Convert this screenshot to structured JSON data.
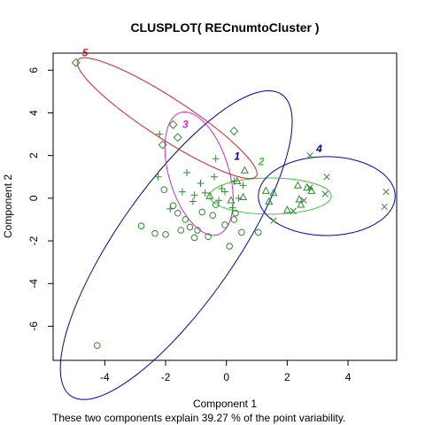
{
  "chart_data": {
    "type": "scatter",
    "title": "CLUSPLOT( RECnumtoCluster )",
    "xlabel": "Component 1",
    "ylabel": "Component 2",
    "caption": "These two components explain 39.27 % of the point variability.",
    "xlim": [
      -5.7,
      5.6
    ],
    "ylim": [
      -7.6,
      6.8
    ],
    "xticks": [
      -4,
      -2,
      0,
      2,
      4
    ],
    "yticks": [
      -6,
      -4,
      -2,
      0,
      2,
      4,
      6
    ],
    "xtick_labels": [
      "-4",
      "-2",
      "0",
      "2",
      "4"
    ],
    "ytick_labels": [
      "-6",
      "-4",
      "-2",
      "0",
      "2",
      "4",
      "6"
    ],
    "grid": false,
    "point_color": "#2e8b2e",
    "clusters": [
      {
        "label": "1",
        "color": "#0000cc",
        "ellipse": {
          "cx": -1.65,
          "cy": -2.2,
          "ra": 6.05,
          "rb": 2.75,
          "angle_deg": 55
        },
        "label_pos": [
          0.35,
          1.8
        ],
        "marker": "circle",
        "points": [
          [
            -4.25,
            -6.9
          ],
          [
            -2.8,
            -1.3
          ],
          [
            -2.35,
            -1.65
          ],
          [
            -2.0,
            -1.7
          ],
          [
            -2.05,
            0.4
          ],
          [
            -1.75,
            -0.35
          ],
          [
            -1.6,
            -0.7
          ],
          [
            -1.5,
            -1.5
          ],
          [
            -1.35,
            -1.0
          ],
          [
            -1.2,
            -1.35
          ],
          [
            -1.05,
            -1.85
          ],
          [
            -0.95,
            -1.5
          ],
          [
            -0.6,
            -1.8
          ],
          [
            -0.45,
            -0.8
          ],
          [
            -0.35,
            -0.3
          ],
          [
            -0.05,
            -1.25
          ],
          [
            0.1,
            -2.25
          ],
          [
            0.25,
            -1.0
          ],
          [
            0.5,
            -1.6
          ],
          [
            1.05,
            -1.6
          ],
          [
            -0.8,
            -0.65
          ],
          [
            0.3,
            -0.7
          ]
        ]
      },
      {
        "label": "2",
        "color": "#33cc33",
        "ellipse": {
          "cx": 1.45,
          "cy": 0.1,
          "ra": 2.0,
          "rb": 0.85,
          "angle_deg": 0
        },
        "label_pos": [
          1.15,
          1.55
        ],
        "marker": "triangle",
        "points": [
          [
            0.35,
            0.8
          ],
          [
            0.55,
            0.05
          ],
          [
            0.6,
            1.3
          ],
          [
            1.3,
            0.35
          ],
          [
            1.4,
            -0.15
          ],
          [
            1.55,
            0.25
          ],
          [
            2.0,
            -0.55
          ],
          [
            2.45,
            -0.3
          ],
          [
            2.4,
            -0.05
          ],
          [
            2.35,
            0.6
          ],
          [
            2.65,
            0.5
          ],
          [
            2.8,
            0.35
          ],
          [
            -0.55,
            0.1
          ],
          [
            0.15,
            -0.1
          ]
        ]
      },
      {
        "label": "3",
        "color": "#dd22dd",
        "ellipse": {
          "cx": -0.9,
          "cy": 1.15,
          "ra": 2.1,
          "rb": 1.4,
          "angle_deg": 107
        },
        "label_pos": [
          -1.35,
          3.3
        ],
        "marker": "plus",
        "points": [
          [
            -2.2,
            3.0
          ],
          [
            -2.25,
            1.0
          ],
          [
            -1.3,
            1.2
          ],
          [
            -0.35,
            1.85
          ],
          [
            -0.85,
            0.7
          ],
          [
            -1.45,
            0.3
          ],
          [
            -1.85,
            -0.5
          ],
          [
            -1.1,
            -0.15
          ],
          [
            -1.05,
            0.15
          ],
          [
            -0.7,
            0.25
          ],
          [
            -0.4,
            1.0
          ],
          [
            -0.15,
            0.45
          ],
          [
            0.25,
            0.8
          ],
          [
            0.55,
            0.6
          ],
          [
            -0.05,
            0.3
          ],
          [
            -0.25,
            -0.1
          ],
          [
            0.2,
            -0.45
          ],
          [
            0.4,
            0.0
          ]
        ]
      },
      {
        "label": "4",
        "color": "#0000cc",
        "ellipse": {
          "cx": 3.3,
          "cy": 0.1,
          "ra": 2.25,
          "rb": 1.85,
          "angle_deg": 0
        },
        "label_pos": [
          3.05,
          2.15
        ],
        "marker": "x",
        "points": [
          [
            2.75,
            2.0
          ],
          [
            3.3,
            1.0
          ],
          [
            2.75,
            0.5
          ],
          [
            3.25,
            0.2
          ],
          [
            2.55,
            -0.1
          ],
          [
            5.25,
            0.3
          ],
          [
            5.2,
            -0.4
          ],
          [
            1.55,
            -1.05
          ],
          [
            2.2,
            -0.6
          ]
        ]
      },
      {
        "label": "5",
        "color": "#dd2222",
        "ellipse": {
          "cx": -1.95,
          "cy": 3.75,
          "ra": 3.5,
          "rb": 0.95,
          "angle_deg": -33
        },
        "label_pos": [
          -4.65,
          6.65
        ],
        "marker": "diamond",
        "points": [
          [
            -4.95,
            6.35
          ],
          [
            -1.75,
            3.45
          ],
          [
            -1.6,
            2.85
          ],
          [
            -2.1,
            2.5
          ],
          [
            0.25,
            3.15
          ]
        ]
      }
    ]
  }
}
